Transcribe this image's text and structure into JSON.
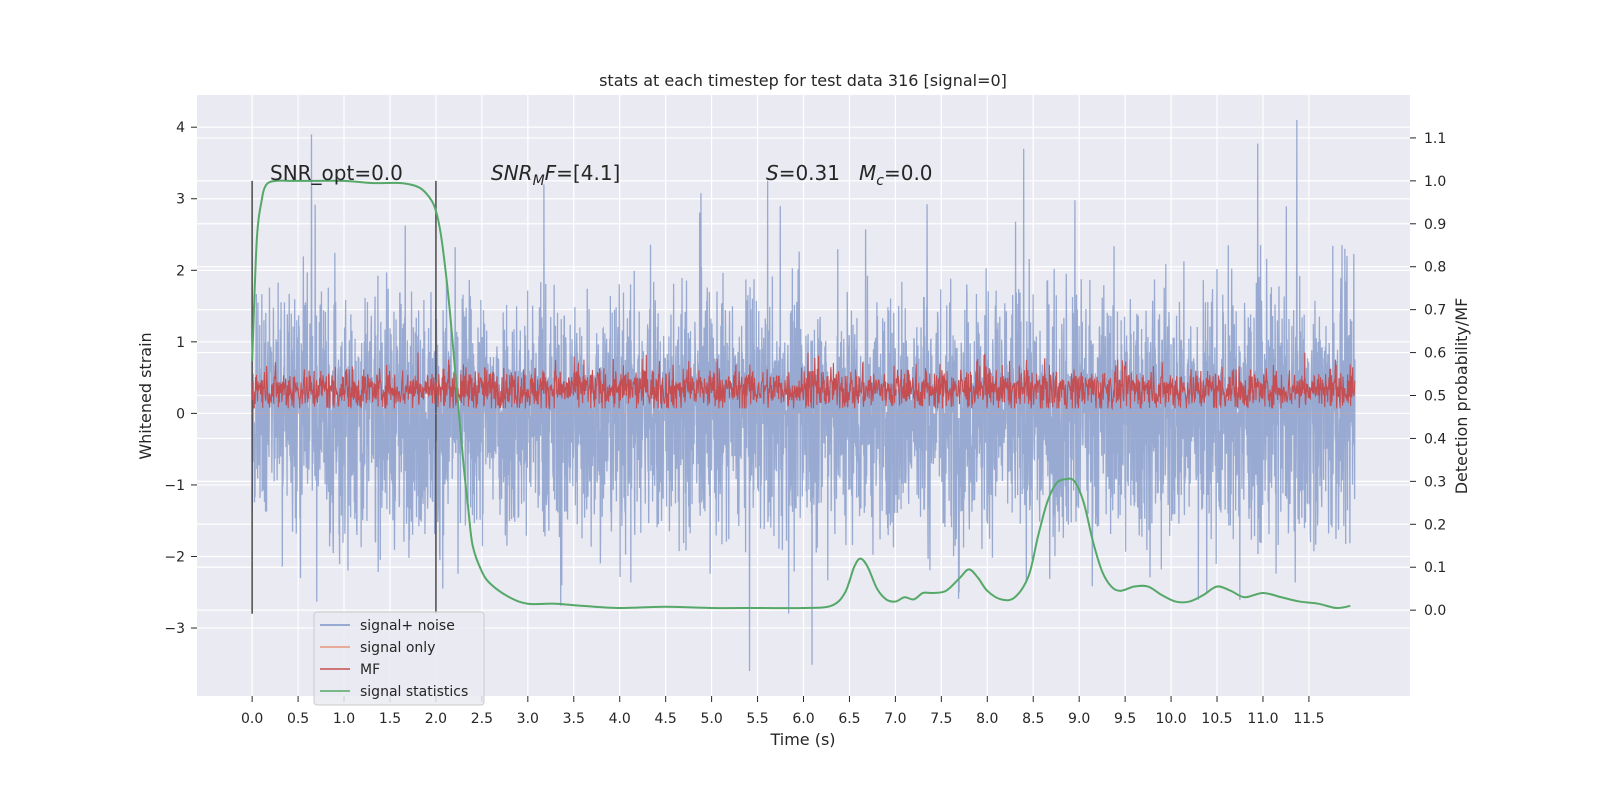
{
  "chart_data": {
    "type": "line",
    "title": "stats at each timestep for test data 316 [signal=0]",
    "xlabel": "Time (s)",
    "ylabel": "Whitened strain",
    "ylabel_right": "Detection probability/MF",
    "xlim": [
      -0.6,
      12.6
    ],
    "ylim": [
      -3.95,
      4.45
    ],
    "ylim_right": [
      -0.2,
      1.2
    ],
    "x_ticks": [
      "0.0",
      "0.5",
      "1.0",
      "1.5",
      "2.0",
      "2.5",
      "3.0",
      "3.5",
      "4.0",
      "4.5",
      "5.0",
      "5.5",
      "6.0",
      "6.5",
      "7.0",
      "7.5",
      "8.0",
      "8.5",
      "9.0",
      "9.5",
      "10.0",
      "10.5",
      "11.0",
      "11.5"
    ],
    "y_ticks": [
      "4",
      "3",
      "2",
      "1",
      "0",
      "−1",
      "−2",
      "−3"
    ],
    "y_ticks_right": [
      "1.1",
      "1.0",
      "0.9",
      "0.8",
      "0.7",
      "0.6",
      "0.5",
      "0.4",
      "0.3",
      "0.2",
      "0.1",
      "0.0"
    ],
    "grid": true,
    "legend_position": "bottom-left",
    "annotations": [
      {
        "text": "SNR_opt=0.0",
        "x": 0.2
      },
      {
        "text": "SNR_MF=[4.1]",
        "x": 2.6
      },
      {
        "text": "S=0.31",
        "x": 5.6
      },
      {
        "text": "M_c=0.0",
        "x": 6.6
      }
    ],
    "window_lines_x": [
      0.0,
      2.0
    ],
    "series": [
      {
        "name": "signal+ noise",
        "color": "#7c94c6",
        "style": "dense noise",
        "x_range": [
          0.0,
          12.0
        ],
        "typical_band": [
          -1.5,
          1.5
        ],
        "extremes": [
          -3.6,
          4.1
        ]
      },
      {
        "name": "signal only",
        "color": "#e8967a",
        "style": "flat",
        "value": 0.0
      },
      {
        "name": "MF",
        "color": "#c44e52",
        "axis": "right",
        "style": "noise",
        "x_range": [
          0.0,
          12.0
        ],
        "typical_band": [
          0.47,
          0.56
        ],
        "extremes": [
          0.47,
          0.6
        ]
      },
      {
        "name": "signal statistics",
        "color": "#55a868",
        "axis": "right",
        "x": [
          0.0,
          0.05,
          0.1,
          0.15,
          0.25,
          0.4,
          0.7,
          1.0,
          1.3,
          1.6,
          1.75,
          1.85,
          1.95,
          2.0,
          2.05,
          2.1,
          2.15,
          2.2,
          2.25,
          2.3,
          2.35,
          2.4,
          2.5,
          2.6,
          2.8,
          3.0,
          3.3,
          3.6,
          4.0,
          4.5,
          5.0,
          5.5,
          6.0,
          6.3,
          6.45,
          6.55,
          6.62,
          6.7,
          6.8,
          6.9,
          7.0,
          7.1,
          7.2,
          7.3,
          7.4,
          7.55,
          7.7,
          7.8,
          7.9,
          8.0,
          8.15,
          8.3,
          8.45,
          8.55,
          8.65,
          8.75,
          8.85,
          8.95,
          9.05,
          9.15,
          9.25,
          9.35,
          9.45,
          9.6,
          9.75,
          9.9,
          10.05,
          10.2,
          10.35,
          10.5,
          10.65,
          10.8,
          11.0,
          11.2,
          11.4,
          11.6,
          11.8,
          11.95
        ],
        "values": [
          0.58,
          0.86,
          0.95,
          0.99,
          1.0,
          1.0,
          1.0,
          1.0,
          0.995,
          0.995,
          0.99,
          0.98,
          0.955,
          0.93,
          0.88,
          0.8,
          0.7,
          0.58,
          0.46,
          0.34,
          0.24,
          0.15,
          0.09,
          0.06,
          0.03,
          0.015,
          0.015,
          0.01,
          0.005,
          0.008,
          0.005,
          0.005,
          0.005,
          0.01,
          0.04,
          0.1,
          0.12,
          0.1,
          0.05,
          0.025,
          0.02,
          0.03,
          0.025,
          0.04,
          0.04,
          0.045,
          0.075,
          0.095,
          0.075,
          0.045,
          0.025,
          0.03,
          0.08,
          0.17,
          0.25,
          0.295,
          0.305,
          0.3,
          0.25,
          0.16,
          0.09,
          0.055,
          0.045,
          0.055,
          0.055,
          0.035,
          0.02,
          0.02,
          0.035,
          0.055,
          0.045,
          0.03,
          0.04,
          0.03,
          0.02,
          0.015,
          0.005,
          0.01
        ]
      }
    ]
  }
}
